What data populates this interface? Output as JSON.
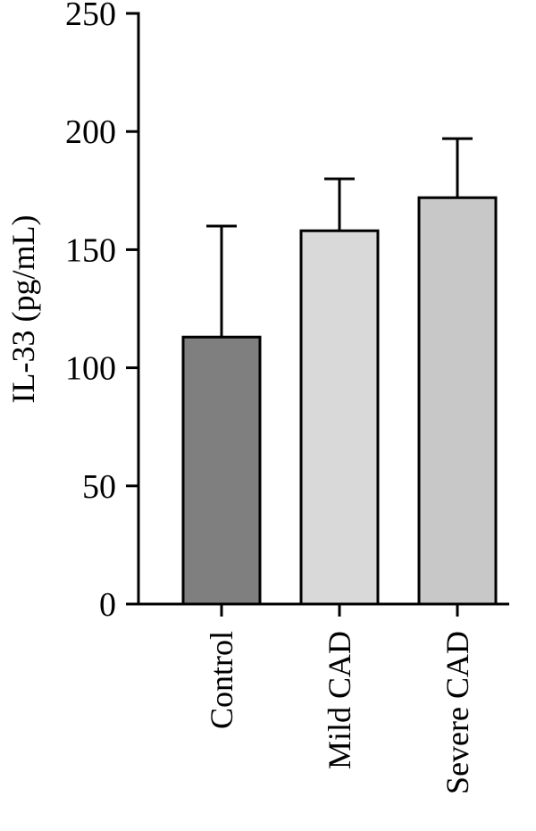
{
  "chart_data": {
    "type": "bar",
    "title": "",
    "xlabel": "",
    "ylabel": "IL-33 (pg/mL)",
    "ylim": [
      0,
      250
    ],
    "yticks": [
      0,
      50,
      100,
      150,
      200,
      250
    ],
    "grid": false,
    "legend": "none",
    "categories": [
      "Control",
      "Mild CAD",
      "Severe CAD"
    ],
    "values": [
      113,
      158,
      172
    ],
    "error_upper": [
      160,
      180,
      197
    ],
    "colors": {
      "Control": "#7f7f7f",
      "Mild CAD": "#d9d9d9",
      "Severe CAD": "#c8c8c8"
    }
  }
}
